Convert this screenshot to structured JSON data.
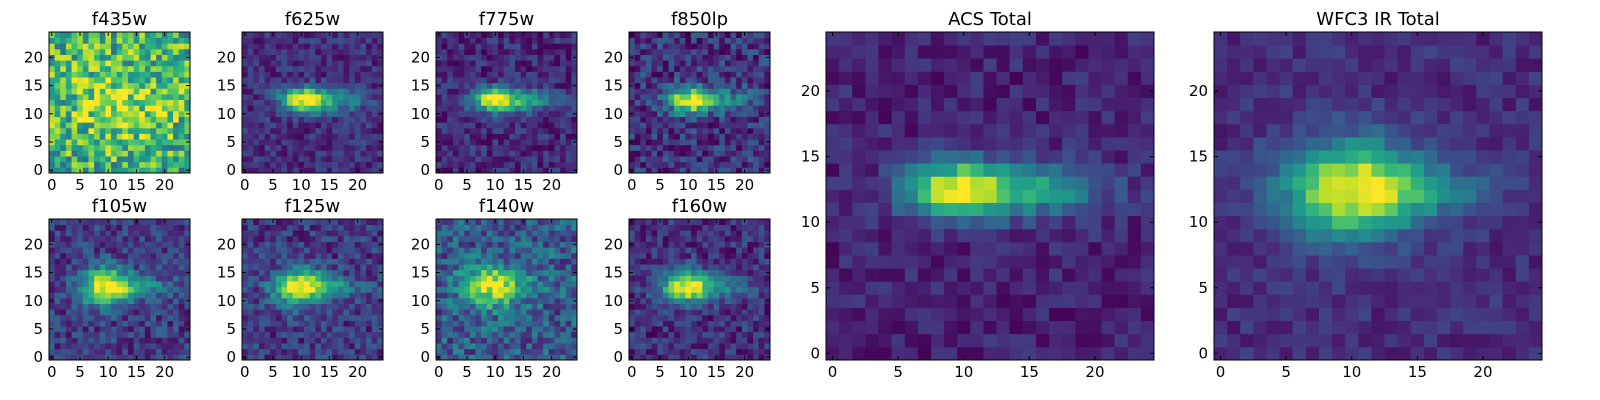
{
  "figure_title": "",
  "colormap": "viridis",
  "colormap_stops": [
    "#440154",
    "#482878",
    "#3e4989",
    "#31688e",
    "#26828e",
    "#1f9e89",
    "#35b779",
    "#6ece58",
    "#b5de2b",
    "#fde725"
  ],
  "chart_data": [
    {
      "type": "heatmap",
      "title": "f435w",
      "grid_size": 25,
      "xticks": [
        "0",
        "5",
        "10",
        "15",
        "20"
      ],
      "yticks": [
        "0",
        "5",
        "10",
        "15",
        "20"
      ],
      "source": {
        "cx": 12,
        "cy": 12,
        "sx": 7,
        "sy": 5,
        "amp": 0.25,
        "tail": 0.0,
        "bg": 0.62,
        "noise": 0.3,
        "seed": 11
      }
    },
    {
      "type": "heatmap",
      "title": "f625w",
      "grid_size": 25,
      "xticks": [
        "0",
        "5",
        "10",
        "15",
        "20"
      ],
      "yticks": [
        "0",
        "5",
        "10",
        "15",
        "20"
      ],
      "source": {
        "cx": 10,
        "cy": 12.5,
        "sx": 2.6,
        "sy": 1.5,
        "amp": 0.85,
        "tail": 0.45,
        "bg": 0.14,
        "noise": 0.12,
        "seed": 21
      }
    },
    {
      "type": "heatmap",
      "title": "f775w",
      "grid_size": 25,
      "xticks": [
        "0",
        "5",
        "10",
        "15",
        "20"
      ],
      "yticks": [
        "0",
        "5",
        "10",
        "15",
        "20"
      ],
      "source": {
        "cx": 9.5,
        "cy": 12.5,
        "sx": 2.6,
        "sy": 1.5,
        "amp": 0.85,
        "tail": 0.5,
        "bg": 0.12,
        "noise": 0.13,
        "seed": 31
      }
    },
    {
      "type": "heatmap",
      "title": "f850lp",
      "grid_size": 25,
      "xticks": [
        "0",
        "5",
        "10",
        "15",
        "20"
      ],
      "yticks": [
        "0",
        "5",
        "10",
        "15",
        "20"
      ],
      "source": {
        "cx": 10,
        "cy": 12.5,
        "sx": 2.6,
        "sy": 1.6,
        "amp": 0.82,
        "tail": 0.45,
        "bg": 0.15,
        "noise": 0.17,
        "seed": 41
      }
    },
    {
      "type": "heatmap",
      "title": "f105w",
      "grid_size": 25,
      "xticks": [
        "0",
        "5",
        "10",
        "15",
        "20"
      ],
      "yticks": [
        "0",
        "5",
        "10",
        "15",
        "20"
      ],
      "source": {
        "cx": 9.5,
        "cy": 12.5,
        "sx": 3.2,
        "sy": 2.3,
        "amp": 0.8,
        "tail": 0.35,
        "bg": 0.18,
        "noise": 0.15,
        "seed": 51
      }
    },
    {
      "type": "heatmap",
      "title": "f125w",
      "grid_size": 25,
      "xticks": [
        "0",
        "5",
        "10",
        "15",
        "20"
      ],
      "yticks": [
        "0",
        "5",
        "10",
        "15",
        "20"
      ],
      "source": {
        "cx": 9.5,
        "cy": 12.5,
        "sx": 3.2,
        "sy": 2.2,
        "amp": 0.8,
        "tail": 0.35,
        "bg": 0.17,
        "noise": 0.15,
        "seed": 61
      }
    },
    {
      "type": "heatmap",
      "title": "f140w",
      "grid_size": 25,
      "xticks": [
        "0",
        "5",
        "10",
        "15",
        "20"
      ],
      "yticks": [
        "0",
        "5",
        "10",
        "15",
        "20"
      ],
      "source": {
        "cx": 9,
        "cy": 12.5,
        "sx": 3.4,
        "sy": 2.6,
        "amp": 0.65,
        "tail": 0.3,
        "bg": 0.28,
        "noise": 0.2,
        "seed": 71
      }
    },
    {
      "type": "heatmap",
      "title": "f160w",
      "grid_size": 25,
      "xticks": [
        "0",
        "5",
        "10",
        "15",
        "20"
      ],
      "yticks": [
        "0",
        "5",
        "10",
        "15",
        "20"
      ],
      "source": {
        "cx": 9.5,
        "cy": 12.5,
        "sx": 3.0,
        "sy": 2.0,
        "amp": 0.82,
        "tail": 0.35,
        "bg": 0.14,
        "noise": 0.14,
        "seed": 81
      }
    },
    {
      "type": "heatmap",
      "title": "ACS Total",
      "grid_size": 25,
      "xticks": [
        "0",
        "5",
        "10",
        "15",
        "20"
      ],
      "yticks": [
        "0",
        "5",
        "10",
        "15",
        "20"
      ],
      "source": {
        "cx": 9,
        "cy": 12.5,
        "sx": 2.6,
        "sy": 1.5,
        "amp": 0.85,
        "tail": 0.55,
        "bg": 0.1,
        "noise": 0.09,
        "seed": 91
      }
    },
    {
      "type": "heatmap",
      "title": "WFC3 IR Total",
      "grid_size": 25,
      "xticks": [
        "0",
        "5",
        "10",
        "15",
        "20"
      ],
      "yticks": [
        "0",
        "5",
        "10",
        "15",
        "20"
      ],
      "source": {
        "cx": 10,
        "cy": 12.5,
        "sx": 3.6,
        "sy": 2.5,
        "amp": 0.85,
        "tail": 0.3,
        "bg": 0.13,
        "noise": 0.08,
        "seed": 101
      }
    }
  ]
}
